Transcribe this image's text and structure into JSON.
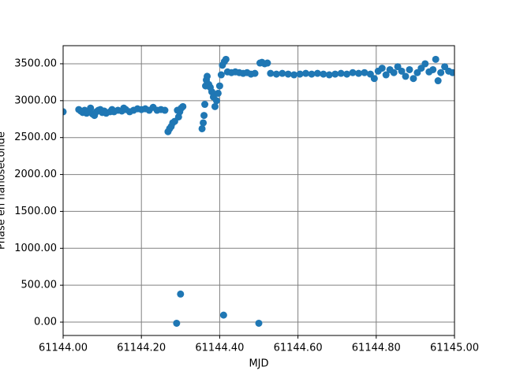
{
  "chart_data": {
    "type": "scatter",
    "color": "#1f77b4",
    "grid": true,
    "x_label": "MJD",
    "y_label": "Phase en nanoseconde",
    "xlim": [
      61144.0,
      61145.0
    ],
    "ylim": [
      -181,
      3745
    ],
    "xticks": [
      {
        "value": 61144.0,
        "label": "61144.00"
      },
      {
        "value": 61144.2,
        "label": "61144.20"
      },
      {
        "value": 61144.4,
        "label": "61144.40"
      },
      {
        "value": 61144.6,
        "label": "61144.60"
      },
      {
        "value": 61144.8,
        "label": "61144.80"
      },
      {
        "value": 61145.0,
        "label": "61145.00"
      }
    ],
    "yticks": [
      {
        "value": 0,
        "label": "0.00"
      },
      {
        "value": 500,
        "label": "500.00"
      },
      {
        "value": 1000,
        "label": "1000.00"
      },
      {
        "value": 1500,
        "label": "1500.00"
      },
      {
        "value": 2000,
        "label": "2000.00"
      },
      {
        "value": 2500,
        "label": "2500.00"
      },
      {
        "value": 3000,
        "label": "3000.00"
      },
      {
        "value": 3500,
        "label": "3500.00"
      }
    ],
    "x": [
      61144.0,
      61144.04,
      61144.045,
      61144.05,
      61144.055,
      61144.06,
      61144.065,
      61144.07,
      61144.075,
      61144.08,
      61144.085,
      61144.09,
      61144.095,
      61144.1,
      61144.105,
      61144.11,
      61144.12,
      61144.125,
      61144.13,
      61144.14,
      61144.15,
      61144.155,
      61144.16,
      61144.17,
      61144.18,
      61144.19,
      61144.2,
      61144.21,
      61144.22,
      61144.23,
      61144.24,
      61144.25,
      61144.26,
      61144.268,
      61144.272,
      61144.276,
      61144.28,
      61144.285,
      61144.29,
      61144.292,
      61144.295,
      61144.298,
      61144.3,
      61144.302,
      61144.306,
      61144.355,
      61144.358,
      61144.36,
      61144.362,
      61144.364,
      61144.366,
      61144.368,
      61144.372,
      61144.376,
      61144.38,
      61144.384,
      61144.388,
      61144.392,
      61144.396,
      61144.4,
      61144.404,
      61144.407,
      61144.41,
      61144.412,
      61144.416,
      61144.42,
      61144.43,
      61144.44,
      61144.45,
      61144.46,
      61144.47,
      61144.48,
      61144.49,
      61144.5,
      61144.503,
      61144.508,
      61144.515,
      61144.522,
      61144.53,
      61144.545,
      61144.56,
      61144.575,
      61144.59,
      61144.605,
      61144.62,
      61144.635,
      61144.65,
      61144.665,
      61144.68,
      61144.695,
      61144.71,
      61144.725,
      61144.74,
      61144.755,
      61144.77,
      61144.785,
      61144.795,
      61144.805,
      61144.815,
      61144.825,
      61144.835,
      61144.845,
      61144.855,
      61144.865,
      61144.875,
      61144.885,
      61144.895,
      61144.905,
      61144.915,
      61144.925,
      61144.935,
      61144.945,
      61144.952,
      61144.958,
      61144.965,
      61144.975,
      61144.985,
      61144.995
    ],
    "values": [
      2850,
      2880,
      2860,
      2840,
      2870,
      2830,
      2850,
      2900,
      2820,
      2800,
      2850,
      2870,
      2880,
      2840,
      2860,
      2830,
      2850,
      2880,
      2850,
      2870,
      2860,
      2900,
      2880,
      2850,
      2870,
      2890,
      2880,
      2890,
      2870,
      2910,
      2870,
      2880,
      2870,
      2580,
      2620,
      2650,
      2700,
      2720,
      -15,
      2870,
      2780,
      2850,
      380,
      2900,
      2920,
      2620,
      2700,
      2800,
      2950,
      3200,
      3280,
      3330,
      3220,
      3180,
      3120,
      3050,
      2920,
      3000,
      3100,
      3200,
      3350,
      3480,
      95,
      3530,
      3560,
      3390,
      3380,
      3390,
      3380,
      3370,
      3380,
      3360,
      3370,
      -15,
      3510,
      3520,
      3500,
      3510,
      3370,
      3360,
      3370,
      3360,
      3350,
      3360,
      3370,
      3360,
      3370,
      3360,
      3350,
      3360,
      3370,
      3360,
      3380,
      3370,
      3380,
      3360,
      3300,
      3400,
      3440,
      3350,
      3420,
      3380,
      3460,
      3400,
      3330,
      3420,
      3300,
      3380,
      3440,
      3500,
      3390,
      3420,
      3560,
      3270,
      3380,
      3460,
      3400,
      3380
    ]
  }
}
